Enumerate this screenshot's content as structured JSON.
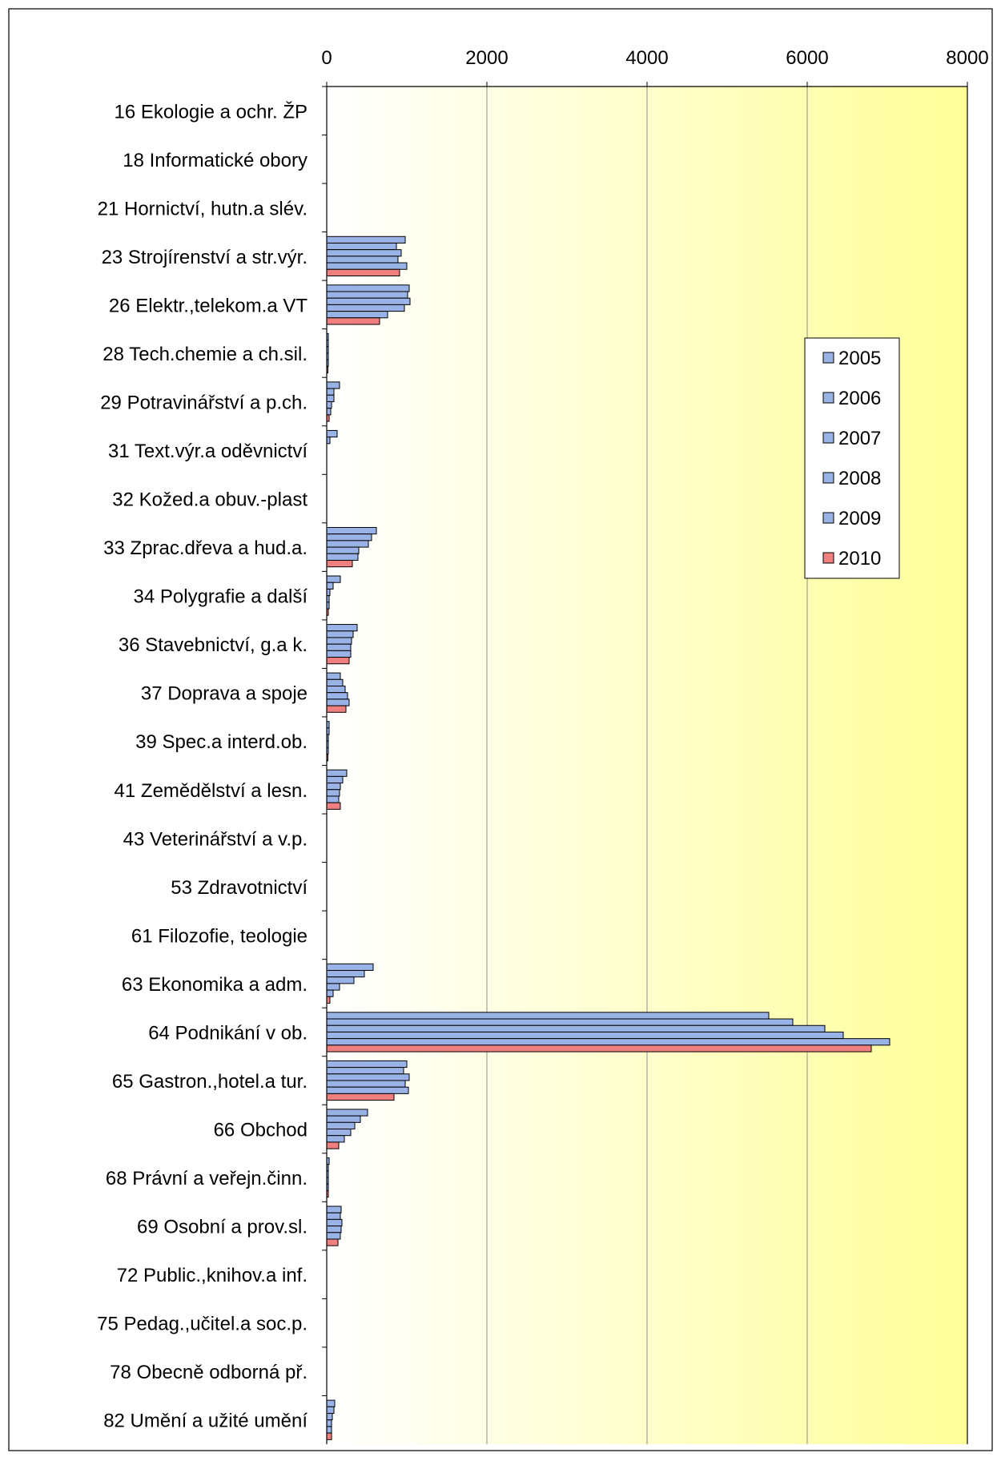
{
  "chart_data": {
    "type": "bar",
    "orientation": "horizontal",
    "title": "",
    "xlabel": "",
    "ylabel": "",
    "xlim": [
      0,
      8000
    ],
    "x_ticks": [
      "0",
      "2000",
      "4000",
      "6000",
      "8000"
    ],
    "x_axis_position": "top",
    "grid": true,
    "legend_position": "right",
    "background": "gradient white to yellow",
    "categories": [
      "16 Ekologie a ochr. ŽP",
      "18 Informatické obory",
      "21 Hornictví, hutn.a slév.",
      "23 Strojírenství a str.výr.",
      "26 Elektr.,telekom.a VT",
      "28 Tech.chemie a ch.sil.",
      "29 Potravinářství a p.ch.",
      "31 Text.výr.a oděvnictví",
      "32 Kožed.a obuv.-plast",
      "33 Zprac.dřeva a hud.a.",
      "34 Polygrafie a další",
      "36 Stavebnictví, g.a k.",
      "37 Doprava a spoje",
      "39 Spec.a interd.ob.",
      "41 Zemědělství a lesn.",
      "43 Veterinářství a v.p.",
      "53 Zdravotnictví",
      "61 Filozofie, teologie",
      "63 Ekonomika a adm.",
      "64 Podnikání v ob.",
      "65 Gastron.,hotel.a tur.",
      "66 Obchod",
      "68 Právní a veřejn.činn.",
      "69 Osobní a prov.sl.",
      "72 Public.,knihov.a inf.",
      "75 Pedag.,učitel.a soc.p.",
      "78 Obecně odborná př.",
      "82 Umění a užité umění"
    ],
    "series": [
      {
        "name": "2005",
        "color": "#99b3e6",
        "values": [
          0,
          0,
          0,
          980,
          1030,
          20,
          160,
          130,
          0,
          620,
          170,
          380,
          170,
          30,
          250,
          0,
          0,
          0,
          580,
          5520,
          1000,
          510,
          30,
          180,
          0,
          0,
          0,
          100
        ]
      },
      {
        "name": "2006",
        "color": "#99b3e6",
        "values": [
          0,
          0,
          0,
          870,
          1010,
          20,
          90,
          40,
          0,
          560,
          80,
          330,
          200,
          30,
          200,
          0,
          0,
          0,
          470,
          5820,
          960,
          420,
          20,
          170,
          0,
          0,
          0,
          90
        ]
      },
      {
        "name": "2007",
        "color": "#99b3e6",
        "values": [
          0,
          0,
          0,
          930,
          1040,
          20,
          90,
          0,
          0,
          520,
          40,
          310,
          230,
          20,
          170,
          0,
          0,
          0,
          340,
          6220,
          1030,
          350,
          20,
          190,
          0,
          0,
          0,
          70
        ]
      },
      {
        "name": "2008",
        "color": "#99b3e6",
        "values": [
          0,
          0,
          0,
          890,
          970,
          20,
          60,
          0,
          0,
          400,
          30,
          300,
          260,
          20,
          160,
          0,
          0,
          0,
          160,
          6450,
          980,
          300,
          20,
          180,
          0,
          0,
          0,
          60
        ]
      },
      {
        "name": "2009",
        "color": "#99b3e6",
        "values": [
          0,
          0,
          0,
          1000,
          760,
          20,
          50,
          0,
          0,
          390,
          30,
          300,
          280,
          20,
          150,
          0,
          0,
          0,
          80,
          7030,
          1020,
          220,
          20,
          170,
          0,
          0,
          0,
          60
        ]
      },
      {
        "name": "2010",
        "color": "#f08080",
        "values": [
          0,
          0,
          0,
          910,
          660,
          10,
          30,
          0,
          0,
          320,
          20,
          280,
          240,
          10,
          170,
          0,
          0,
          0,
          40,
          6800,
          840,
          150,
          20,
          140,
          0,
          0,
          0,
          60
        ]
      }
    ]
  }
}
